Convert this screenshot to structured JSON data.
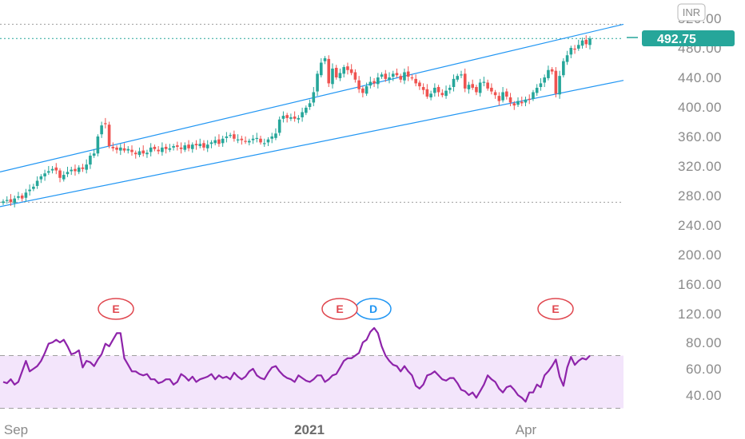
{
  "chart_data": [
    {
      "type": "candlestick",
      "currency": "INR",
      "last_price": 492.75,
      "price_axis": {
        "ticks": [
          "520.00",
          "480.00",
          "440.00",
          "400.00",
          "360.00",
          "320.00",
          "280.00",
          "240.00",
          "200.00",
          "160.00",
          "120.00"
        ],
        "range": [
          110,
          525
        ]
      },
      "time_axis": {
        "labels": [
          "Sep",
          "2021",
          "Apr"
        ],
        "bold": [
          false,
          true,
          false
        ]
      },
      "reference_lines": [
        512,
        492.75,
        271
      ],
      "channel": {
        "upper": {
          "x": [
            "start",
            "end"
          ],
          "y": [
            312,
            512
          ]
        },
        "lower": {
          "x": [
            "start",
            "end"
          ],
          "y": [
            265,
            436
          ]
        },
        "color": "#2196f3"
      },
      "closes": [
        272,
        274,
        271,
        276,
        279,
        276,
        284,
        288,
        292,
        300,
        306,
        310,
        313,
        316,
        314,
        304,
        308,
        312,
        315,
        313,
        318,
        316,
        322,
        334,
        337,
        360,
        375,
        377,
        347,
        344,
        342,
        345,
        341,
        343,
        339,
        336,
        340,
        337,
        338,
        345,
        343,
        340,
        345,
        343,
        344,
        347,
        346,
        343,
        348,
        344,
        349,
        348,
        350,
        345,
        349,
        352,
        355,
        350,
        357,
        360,
        362,
        357,
        356,
        355,
        353,
        354,
        357,
        358,
        352,
        351,
        356,
        360,
        364,
        383,
        388,
        385,
        386,
        384,
        385,
        393,
        399,
        405,
        420,
        445,
        460,
        466,
        432,
        452,
        440,
        446,
        454,
        450,
        446,
        437,
        424,
        419,
        428,
        434,
        432,
        440,
        444,
        438,
        440,
        445,
        443,
        437,
        447,
        441,
        439,
        432,
        428,
        423,
        414,
        418,
        426,
        420,
        416,
        422,
        426,
        438,
        442,
        444,
        425,
        430,
        426,
        420,
        433,
        434,
        425,
        421,
        416,
        408,
        420,
        414,
        406,
        402,
        408,
        405,
        410,
        410,
        420,
        426,
        432,
        440,
        450,
        448,
        418,
        442,
        462,
        470,
        480,
        478,
        484,
        490,
        485,
        492.75
      ],
      "opens": [
        270,
        273,
        275,
        270,
        277,
        280,
        277,
        286,
        289,
        293,
        302,
        306,
        311,
        314,
        318,
        314,
        302,
        309,
        313,
        316,
        312,
        318,
        315,
        322,
        334,
        337,
        363,
        378,
        376,
        346,
        345,
        341,
        344,
        341,
        342,
        338,
        335,
        341,
        336,
        339,
        346,
        342,
        339,
        346,
        342,
        345,
        348,
        345,
        342,
        349,
        343,
        350,
        347,
        351,
        344,
        350,
        351,
        356,
        351,
        358,
        361,
        363,
        356,
        357,
        354,
        352,
        355,
        358,
        357,
        350,
        352,
        357,
        358,
        365,
        384,
        389,
        384,
        387,
        383,
        386,
        392,
        400,
        406,
        421,
        443,
        462,
        465,
        431,
        453,
        439,
        445,
        455,
        451,
        447,
        436,
        425,
        418,
        429,
        435,
        431,
        441,
        445,
        437,
        441,
        446,
        442,
        436,
        448,
        440,
        438,
        433,
        427,
        424,
        413,
        419,
        427,
        419,
        415,
        423,
        427,
        437,
        443,
        445,
        424,
        431,
        427,
        419,
        434,
        433,
        426,
        420,
        415,
        409,
        421,
        413,
        405,
        403,
        407,
        406,
        411,
        411,
        419,
        427,
        433,
        439,
        451,
        449,
        417,
        443,
        461,
        471,
        479,
        479,
        483,
        491,
        484
      ],
      "rsi": {
        "ticks": [
          "80.00",
          "60.00",
          "40.00"
        ],
        "upper_band": 70,
        "lower_band": 30,
        "values": [
          50,
          49,
          52,
          48,
          50,
          58,
          66,
          58,
          60,
          62,
          66,
          72,
          79,
          80,
          82,
          80,
          82,
          77,
          71,
          72,
          74,
          61,
          66,
          65,
          62,
          67,
          71,
          79,
          77,
          82,
          87,
          87,
          68,
          63,
          58,
          58,
          56,
          55,
          56,
          52,
          52,
          49,
          50,
          52,
          52,
          48,
          50,
          56,
          54,
          51,
          54,
          50,
          52,
          53,
          54,
          56,
          52,
          55,
          53,
          54,
          52,
          57,
          54,
          52,
          54,
          58,
          60,
          55,
          53,
          52,
          57,
          61,
          62,
          58,
          55,
          53,
          52,
          50,
          55,
          53,
          51,
          50,
          52,
          55,
          55,
          50,
          52,
          55,
          56,
          61,
          66,
          68,
          68,
          70,
          72,
          80,
          82,
          88,
          91,
          87,
          77,
          70,
          66,
          63,
          62,
          58,
          62,
          58,
          55,
          47,
          45,
          48,
          55,
          56,
          58,
          55,
          52,
          51,
          53,
          53,
          49,
          44,
          43,
          40,
          42,
          38,
          43,
          48,
          55,
          52,
          50,
          45,
          42,
          46,
          47,
          44,
          40,
          38,
          35,
          42,
          42,
          48,
          46,
          55,
          58,
          62,
          67,
          54,
          47,
          61,
          69,
          63,
          66,
          68,
          67,
          70
        ]
      },
      "events": [
        {
          "label": "E",
          "type": "earnings",
          "color": "#e0474f"
        },
        {
          "label": "E",
          "type": "earnings",
          "color": "#e0474f"
        },
        {
          "label": "D",
          "type": "dividend",
          "color": "#2196f3"
        },
        {
          "label": "E",
          "type": "earnings",
          "color": "#e0474f"
        }
      ],
      "colors": {
        "up": "#26a69a",
        "down": "#ef5350",
        "rsi_line": "#8e24aa",
        "rsi_fill": "#f3e5fb",
        "price_tag": "#26a69a"
      }
    }
  ]
}
